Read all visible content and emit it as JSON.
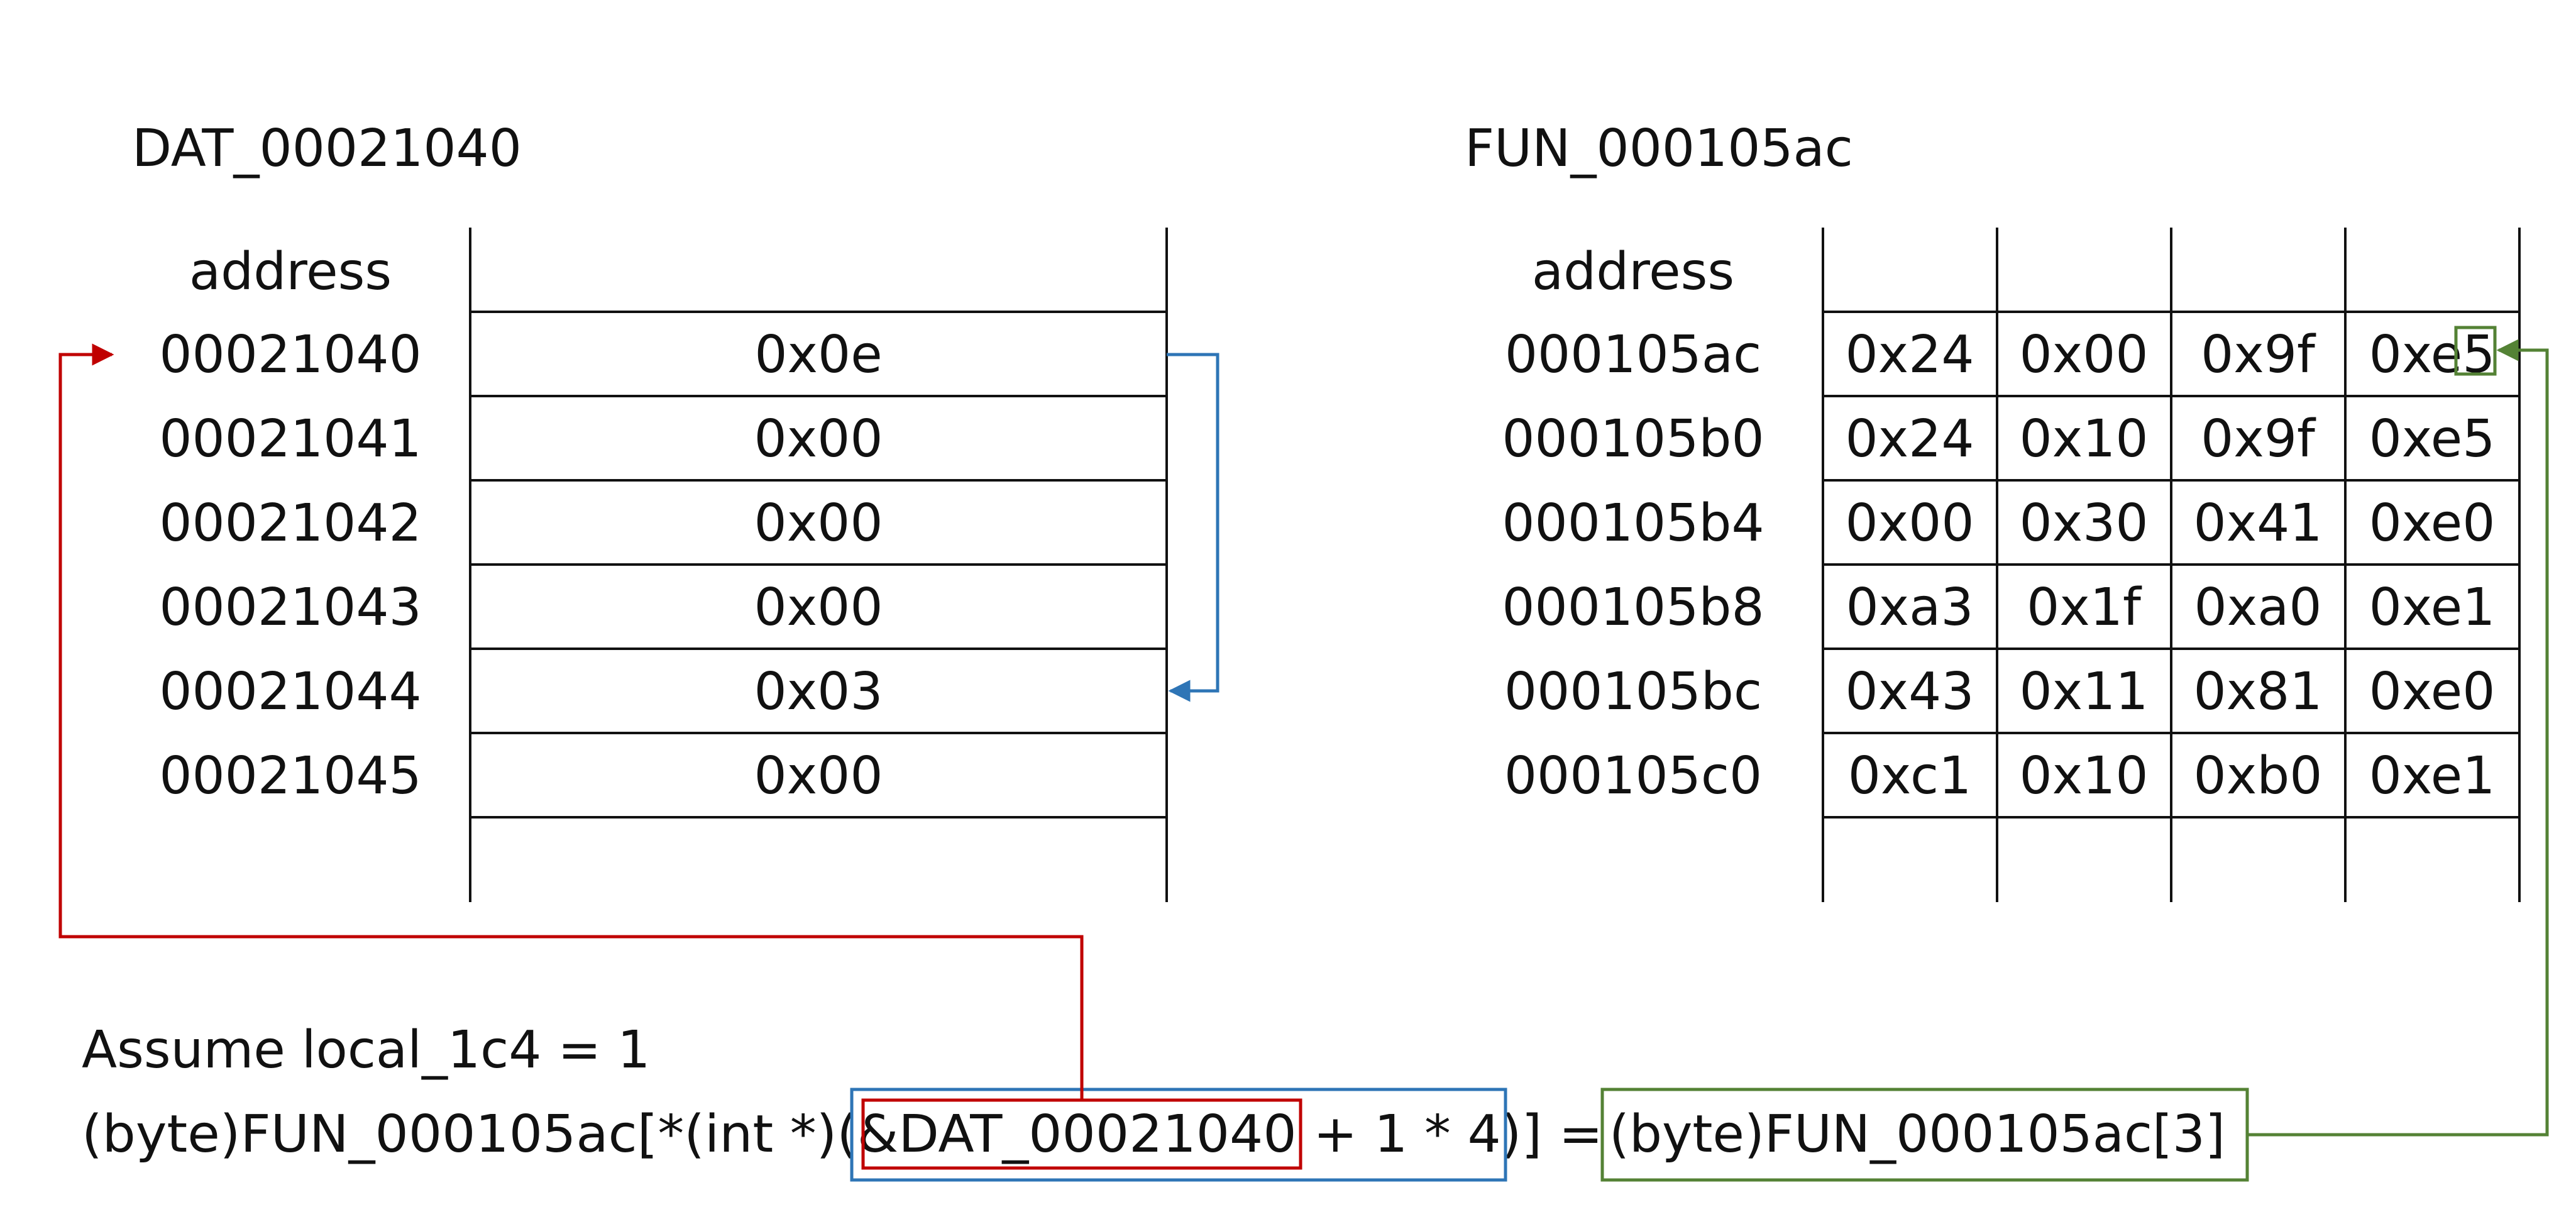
{
  "left_table": {
    "title": "DAT_00021040",
    "address_header": "address",
    "addresses": [
      "00021040",
      "00021041",
      "00021042",
      "00021043",
      "00021044",
      "00021045"
    ],
    "values": [
      "0x0e",
      "0x00",
      "0x00",
      "0x00",
      "0x03",
      "0x00"
    ]
  },
  "right_table": {
    "title": "FUN_000105ac",
    "address_header": "address",
    "addresses": [
      "000105ac",
      "000105b0",
      "000105b4",
      "000105b8",
      "000105bc",
      "000105c0"
    ],
    "rows": [
      [
        "0x24",
        "0x00",
        "0x9f",
        "0xe5"
      ],
      [
        "0x24",
        "0x10",
        "0x9f",
        "0xe5"
      ],
      [
        "0x00",
        "0x30",
        "0x41",
        "0xe0"
      ],
      [
        "0xa3",
        "0x1f",
        "0xa0",
        "0xe1"
      ],
      [
        "0x43",
        "0x11",
        "0x81",
        "0xe0"
      ],
      [
        "0xc1",
        "0x10",
        "0xb0",
        "0xe1"
      ]
    ]
  },
  "code": {
    "assume": "Assume local_1c4 = 1",
    "line_prefix": "(byte)FUN_000105ac[*(int *)(",
    "dat_ref": "&DAT_00021040",
    "offset_expr": " + 1 * 4",
    "close_assign": ")] =",
    "rhs": "(byte)FUN_000105ac[3]"
  },
  "colors": {
    "red": "#c00000",
    "blue": "#2e75b6",
    "green": "#548235",
    "line": "#111111"
  }
}
